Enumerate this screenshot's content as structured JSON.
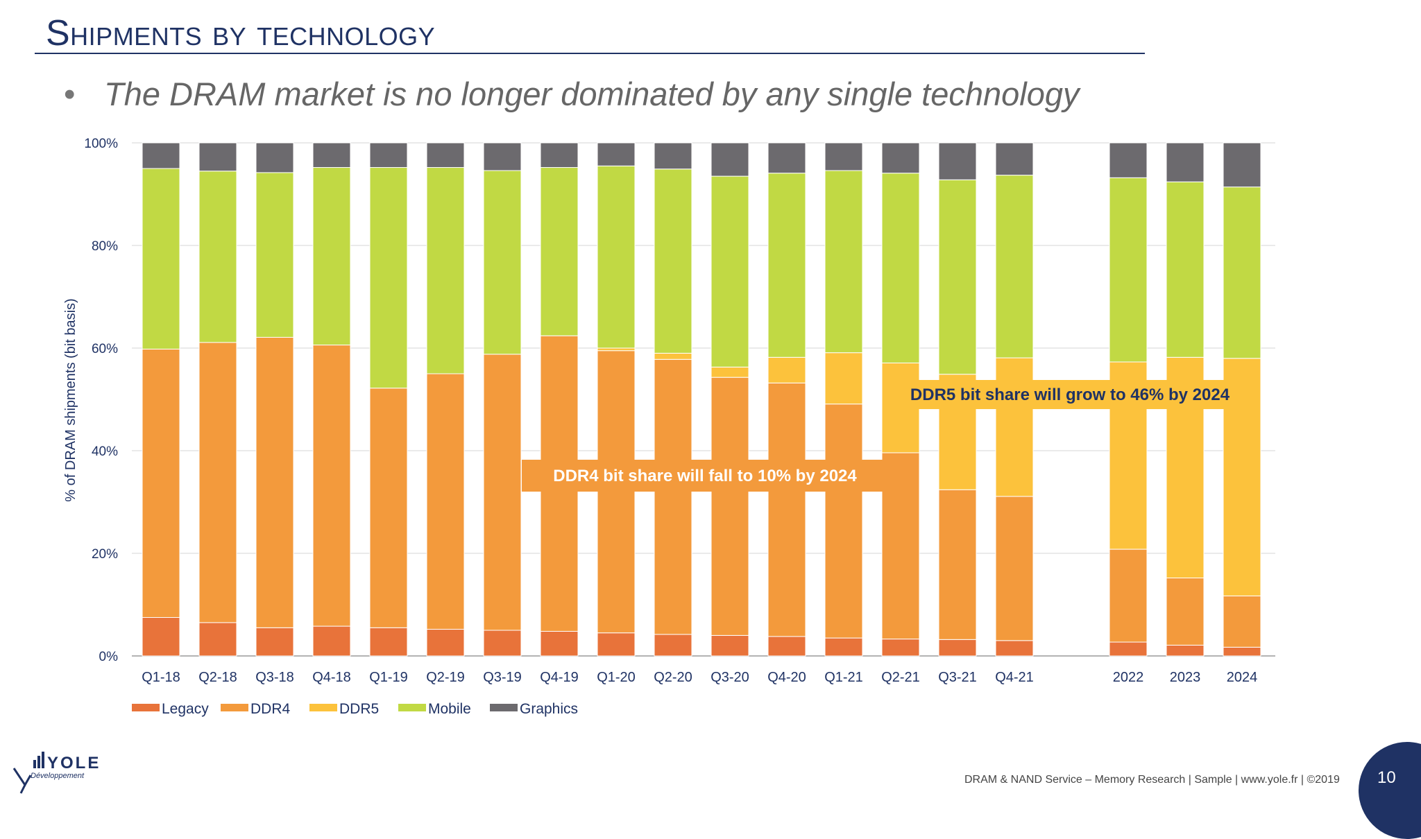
{
  "slide": {
    "title": "Shipments by technology",
    "bullet_marker": "•",
    "bullet": "The DRAM market is no longer dominated by any single technology",
    "footer": "DRAM & NAND Service – Memory Research  | Sample | www.yole.fr | ©2019",
    "page_number": "10",
    "logo": {
      "wordmark": "YOLE",
      "tagline": "Développement"
    },
    "colors": {
      "title": "#1f3264",
      "page_circle": "#1f3264"
    }
  },
  "chart_data": {
    "type": "bar",
    "stacked": true,
    "ylabel": "% of DRAM shipments (bit basis)",
    "ylim": [
      0,
      100
    ],
    "yticks": [
      "0%",
      "20%",
      "40%",
      "60%",
      "80%",
      "100%"
    ],
    "grid": true,
    "legend_position": "bottom-left",
    "categories": [
      "Q1-18",
      "Q2-18",
      "Q3-18",
      "Q4-18",
      "Q1-19",
      "Q2-19",
      "Q3-19",
      "Q4-19",
      "Q1-20",
      "Q2-20",
      "Q3-20",
      "Q4-20",
      "Q1-21",
      "Q2-21",
      "Q3-21",
      "Q4-21",
      "",
      "2022",
      "2023",
      "2024"
    ],
    "series": [
      {
        "name": "Legacy",
        "color": "#e8733a",
        "values": [
          7.5,
          6.5,
          5.5,
          5.8,
          5.5,
          5.2,
          5.0,
          4.8,
          4.5,
          4.2,
          4.0,
          3.8,
          3.5,
          3.3,
          3.2,
          3.0,
          null,
          2.7,
          2.1,
          1.7
        ]
      },
      {
        "name": "DDR4",
        "color": "#f39a3c",
        "values": [
          52.3,
          54.6,
          56.6,
          54.8,
          46.7,
          49.8,
          53.8,
          57.6,
          55.0,
          53.6,
          50.3,
          49.4,
          45.6,
          36.3,
          29.2,
          28.1,
          null,
          18.1,
          13.1,
          10.0
        ]
      },
      {
        "name": "DDR5",
        "color": "#fcc23c",
        "values": [
          0,
          0,
          0,
          0,
          0,
          0,
          0,
          0,
          0.5,
          1.2,
          2.0,
          5.0,
          10.0,
          17.5,
          22.5,
          27.0,
          null,
          36.5,
          43.0,
          46.3
        ]
      },
      {
        "name": "Mobile",
        "color": "#c1d944",
        "values": [
          35.2,
          33.4,
          32.1,
          34.6,
          43.0,
          40.2,
          35.8,
          32.8,
          35.5,
          35.9,
          37.2,
          35.9,
          35.5,
          37.0,
          37.9,
          35.6,
          null,
          35.9,
          34.2,
          33.4
        ]
      },
      {
        "name": "Graphics",
        "color": "#6c6a6e",
        "values": [
          5.0,
          5.5,
          5.8,
          4.8,
          4.8,
          4.8,
          5.4,
          4.8,
          4.5,
          5.1,
          6.5,
          5.9,
          5.4,
          5.9,
          7.2,
          6.3,
          null,
          6.8,
          7.6,
          8.6
        ]
      }
    ],
    "annotations": [
      {
        "text": "DDR4 bit share will fall to 10% by 2024",
        "color": "#ffffff",
        "background": "#f39a3c"
      },
      {
        "text": "DDR5 bit share will grow to 46% by 2024",
        "color": "#1f3264",
        "background": "#fcc23c"
      }
    ]
  }
}
